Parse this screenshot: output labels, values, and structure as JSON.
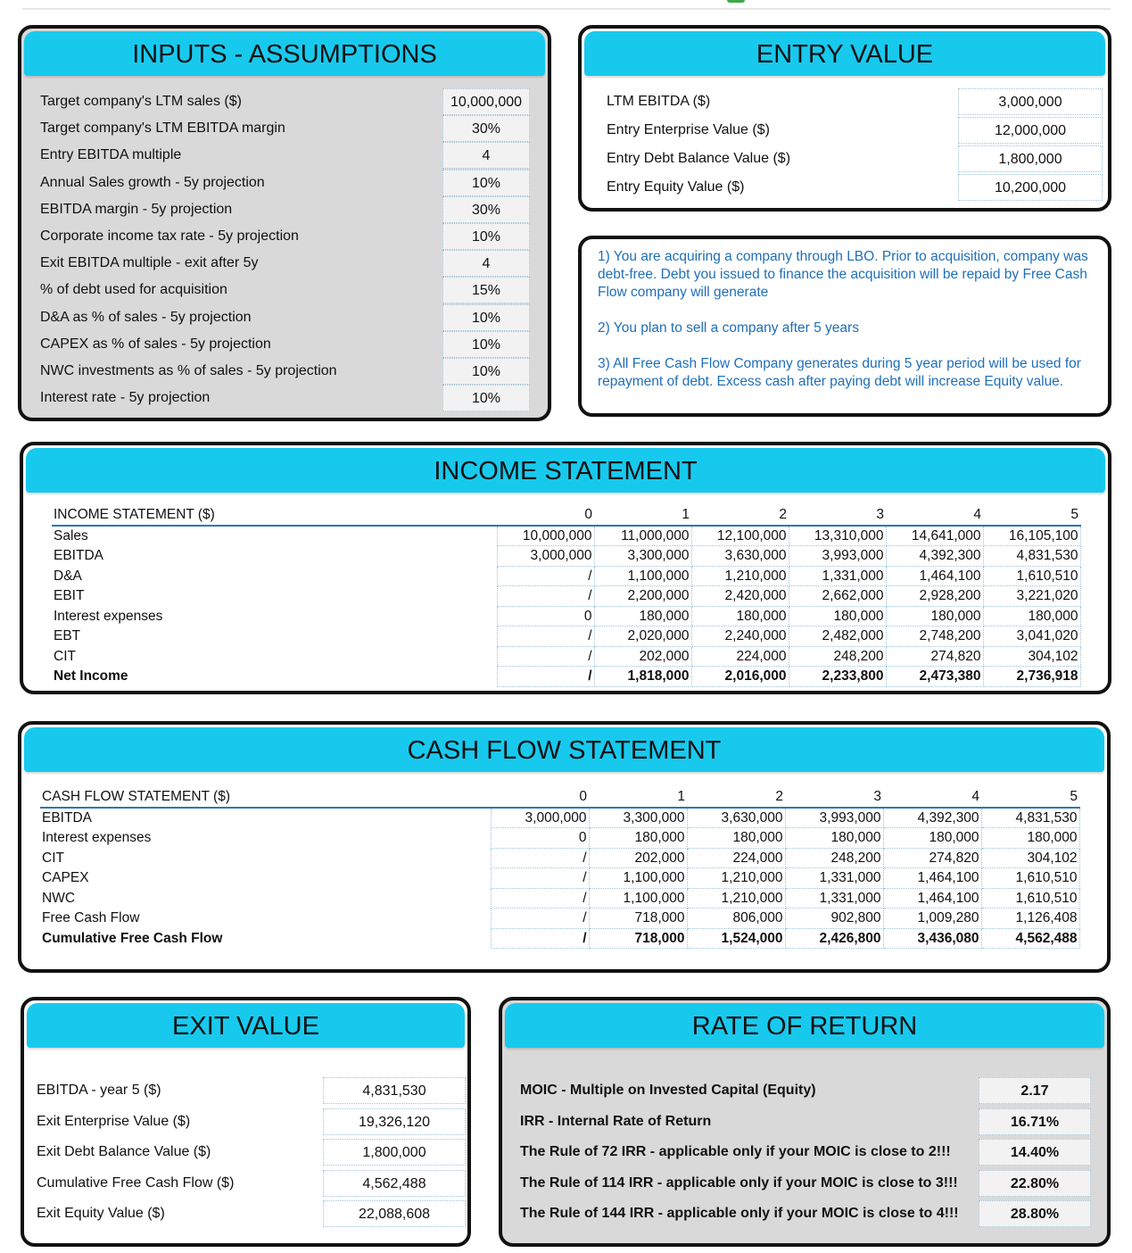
{
  "inputs": {
    "title": "INPUTS - ASSUMPTIONS",
    "rows": [
      {
        "label": "Target company's LTM sales ($)",
        "value": "10,000,000"
      },
      {
        "label": "Target company's LTM EBITDA margin",
        "value": "30%"
      },
      {
        "label": "Entry EBITDA multiple",
        "value": "4"
      },
      {
        "label": "Annual Sales growth - 5y projection",
        "value": "10%"
      },
      {
        "label": "EBITDA margin - 5y projection",
        "value": "30%"
      },
      {
        "label": "Corporate income tax rate - 5y projection",
        "value": "10%"
      },
      {
        "label": "Exit EBITDA multiple - exit after 5y",
        "value": "4"
      },
      {
        "label": "% of debt used for acquisition",
        "value": "15%"
      },
      {
        "label": "D&A as % of sales - 5y projection",
        "value": "10%"
      },
      {
        "label": "CAPEX as % of sales - 5y projection",
        "value": "10%"
      },
      {
        "label": "NWC investments as % of sales - 5y projection",
        "value": "10%"
      },
      {
        "label": "Interest rate - 5y projection",
        "value": "10%"
      }
    ]
  },
  "entry": {
    "title": "ENTRY VALUE",
    "rows": [
      {
        "label": "LTM EBITDA ($)",
        "value": "3,000,000"
      },
      {
        "label": "Entry Enterprise Value ($)",
        "value": "12,000,000"
      },
      {
        "label": "Entry Debt Balance Value ($)",
        "value": "1,800,000"
      },
      {
        "label": "Entry Equity Value ($)",
        "value": "10,200,000"
      }
    ]
  },
  "notes": [
    "1) You are acquiring a company through LBO. Prior to acquisition, company was debt-free. Debt you issued to finance the acquisition will be repaid by Free Cash Flow company will generate",
    "2) You plan to sell a company after 5 years",
    "3) All Free Cash Flow Company generates during 5 year period will be used for repayment of debt.  Excess cash after paying debt will increase Equity value."
  ],
  "income": {
    "title": "INCOME STATEMENT",
    "header": "INCOME STATEMENT ($)",
    "years": [
      "0",
      "1",
      "2",
      "3",
      "4",
      "5"
    ],
    "rows": [
      {
        "label": "Sales",
        "values": [
          "10,000,000",
          "11,000,000",
          "12,100,000",
          "13,310,000",
          "14,641,000",
          "16,105,100"
        ]
      },
      {
        "label": "EBITDA",
        "values": [
          "3,000,000",
          "3,300,000",
          "3,630,000",
          "3,993,000",
          "4,392,300",
          "4,831,530"
        ]
      },
      {
        "label": "D&A",
        "values": [
          "/",
          "1,100,000",
          "1,210,000",
          "1,331,000",
          "1,464,100",
          "1,610,510"
        ]
      },
      {
        "label": "EBIT",
        "values": [
          "/",
          "2,200,000",
          "2,420,000",
          "2,662,000",
          "2,928,200",
          "3,221,020"
        ]
      },
      {
        "label": "Interest expenses",
        "values": [
          "0",
          "180,000",
          "180,000",
          "180,000",
          "180,000",
          "180,000"
        ]
      },
      {
        "label": "EBT",
        "values": [
          "/",
          "2,020,000",
          "2,240,000",
          "2,482,000",
          "2,748,200",
          "3,041,020"
        ]
      },
      {
        "label": "CIT",
        "values": [
          "/",
          "202,000",
          "224,000",
          "248,200",
          "274,820",
          "304,102"
        ]
      },
      {
        "label": "Net Income",
        "values": [
          "/",
          "1,818,000",
          "2,016,000",
          "2,233,800",
          "2,473,380",
          "2,736,918"
        ],
        "bold": true
      }
    ]
  },
  "cashflow": {
    "title": "CASH FLOW STATEMENT",
    "header": "CASH FLOW STATEMENT ($)",
    "years": [
      "0",
      "1",
      "2",
      "3",
      "4",
      "5"
    ],
    "rows": [
      {
        "label": "EBITDA",
        "values": [
          "3,000,000",
          "3,300,000",
          "3,630,000",
          "3,993,000",
          "4,392,300",
          "4,831,530"
        ]
      },
      {
        "label": "Interest expenses",
        "values": [
          "0",
          "180,000",
          "180,000",
          "180,000",
          "180,000",
          "180,000"
        ]
      },
      {
        "label": "CIT",
        "values": [
          "/",
          "202,000",
          "224,000",
          "248,200",
          "274,820",
          "304,102"
        ]
      },
      {
        "label": "CAPEX",
        "values": [
          "/",
          "1,100,000",
          "1,210,000",
          "1,331,000",
          "1,464,100",
          "1,610,510"
        ]
      },
      {
        "label": "NWC",
        "values": [
          "/",
          "1,100,000",
          "1,210,000",
          "1,331,000",
          "1,464,100",
          "1,610,510"
        ]
      },
      {
        "label": "Free Cash Flow",
        "values": [
          "/",
          "718,000",
          "806,000",
          "902,800",
          "1,009,280",
          "1,126,408"
        ]
      },
      {
        "label": "Cumulative Free Cash Flow",
        "values": [
          "/",
          "718,000",
          "1,524,000",
          "2,426,800",
          "3,436,080",
          "4,562,488"
        ],
        "bold": true
      }
    ]
  },
  "exit": {
    "title": "EXIT VALUE",
    "rows": [
      {
        "label": "EBITDA - year 5 ($)",
        "value": "4,831,530"
      },
      {
        "label": "Exit Enterprise Value ($)",
        "value": "19,326,120"
      },
      {
        "label": "Exit Debt Balance Value ($)",
        "value": "1,800,000"
      },
      {
        "label": "Cumulative Free Cash Flow ($)",
        "value": "4,562,488"
      },
      {
        "label": "Exit Equity Value ($)",
        "value": "22,088,608"
      }
    ]
  },
  "rate": {
    "title": "RATE OF RETURN",
    "rows": [
      {
        "label": "MOIC - Multiple on Invested Capital (Equity)",
        "value": "2.17"
      },
      {
        "label": "IRR - Internal Rate of Return",
        "value": "16.71%"
      },
      {
        "label": "The Rule of 72 IRR - applicable only if your MOIC is close to 2!!!",
        "value": "14.40%"
      },
      {
        "label": "The Rule of 114 IRR - applicable only if your MOIC is close to 3!!!",
        "value": "22.80%"
      },
      {
        "label": "The Rule of 144 IRR - applicable only if your MOIC is close to 4!!!",
        "value": "28.80%"
      }
    ]
  },
  "colors": {
    "header": "#18c9ee",
    "panel_gray": "#d9d9d9",
    "notes_text": "#1f6fb8",
    "border": "#111111"
  }
}
